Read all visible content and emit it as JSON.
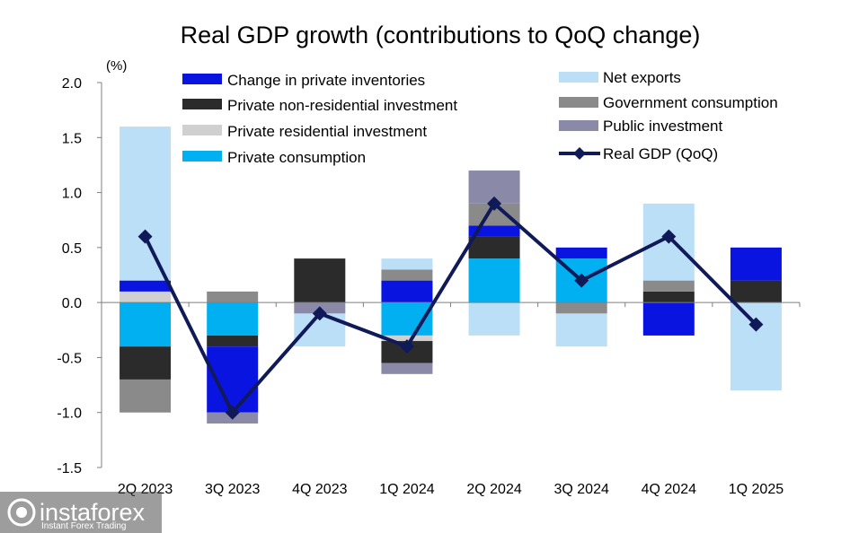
{
  "chart_data": {
    "type": "bar",
    "stacked": true,
    "title": "Real GDP growth (contributions to QoQ change)",
    "ylabel": "(%)",
    "ylim": [
      -1.5,
      2.0
    ],
    "yticks": [
      2.0,
      1.5,
      1.0,
      0.5,
      0.0,
      -0.5,
      -1.0,
      -1.5
    ],
    "ytick_labels": [
      "2.0",
      "1.5",
      "1.0",
      "0.5",
      "0.0",
      "-0.5",
      "-1.0",
      "-1.5"
    ],
    "categories": [
      "2Q 2023",
      "3Q 2023",
      "4Q 2023",
      "1Q 2024",
      "2Q 2024",
      "3Q 2024",
      "4Q 2024",
      "1Q 2025"
    ],
    "series": [
      {
        "name": "Private consumption",
        "color": "#00b0f0",
        "values": [
          -0.4,
          -0.3,
          0.0,
          -0.3,
          0.4,
          0.4,
          0.0,
          0.0
        ]
      },
      {
        "name": "Private residential investment",
        "color": "#d0d0d0",
        "values": [
          0.1,
          0.0,
          0.0,
          -0.05,
          0.0,
          0.0,
          0.0,
          0.0
        ]
      },
      {
        "name": "Private non-residential investment",
        "color": "#2b2b2b",
        "values": [
          -0.3,
          -0.1,
          0.4,
          -0.2,
          0.2,
          0.0,
          0.1,
          0.2
        ]
      },
      {
        "name": "Change in private inventories",
        "color": "#0a14e0",
        "values": [
          0.1,
          -0.6,
          0.0,
          0.2,
          0.1,
          0.1,
          -0.3,
          0.3
        ]
      },
      {
        "name": "Government consumption",
        "color": "#8a8a8a",
        "values": [
          -0.3,
          0.1,
          0.0,
          0.1,
          0.2,
          -0.1,
          0.1,
          0.0
        ]
      },
      {
        "name": "Public investment",
        "color": "#8a8aa8",
        "values": [
          0.0,
          -0.1,
          -0.1,
          -0.1,
          0.3,
          0.0,
          0.0,
          0.0
        ]
      },
      {
        "name": "Net exports",
        "color": "#bcdff8",
        "values": [
          1.4,
          0.0,
          -0.3,
          0.1,
          -0.3,
          -0.3,
          0.7,
          -0.8
        ]
      }
    ],
    "line": {
      "name": "Real GDP (QoQ)",
      "color": "#101a58",
      "values": [
        0.6,
        -1.0,
        -0.1,
        -0.4,
        0.9,
        0.2,
        0.6,
        -0.2
      ]
    },
    "legend": {
      "left_column": [
        "Change in private inventories",
        "Private non-residential investment",
        "Private residential investment",
        "Private consumption"
      ],
      "right_column": [
        "Net exports",
        "Government consumption",
        "Public investment",
        "Real GDP (QoQ)"
      ]
    }
  },
  "watermark": {
    "brand": "instaforex",
    "tagline": "Instant Forex Trading",
    "icon": "instaforex-logo-icon"
  }
}
